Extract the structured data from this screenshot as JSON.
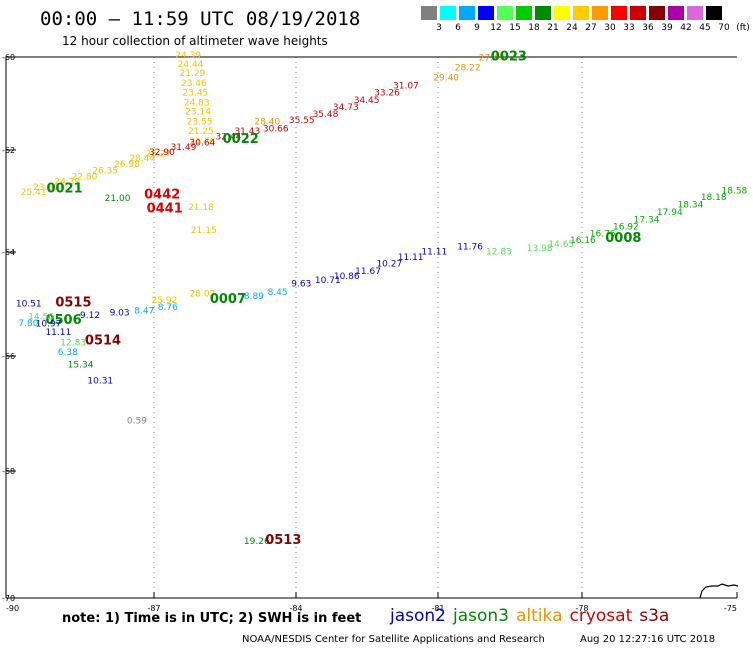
{
  "title": "00:00 – 11:59 UTC 08/19/2018",
  "subtitle": "12 hour collection of altimeter wave heights",
  "legend": {
    "colors": [
      "#808080",
      "#00ffff",
      "#00aaff",
      "#0000ff",
      "#55ff55",
      "#00cc00",
      "#008800",
      "#ffff00",
      "#ffcc00",
      "#ff9900",
      "#ff0000",
      "#cc0000",
      "#880000",
      "#aa00aa",
      "#dd66dd",
      "#000000"
    ],
    "labels": [
      "3",
      "6",
      "9",
      "12",
      "15",
      "18",
      "21",
      "24",
      "27",
      "30",
      "33",
      "36",
      "39",
      "42",
      "45",
      "70",
      "(ft)"
    ]
  },
  "axes": {
    "lat_ticks": [
      "-60",
      "-62",
      "-64",
      "-66",
      "-68",
      "-70"
    ],
    "lon_ticks": [
      "-90",
      "-87",
      "-84",
      "-81",
      "-78",
      "-75"
    ]
  },
  "observations": [
    {
      "text": "24.39",
      "color": "#f2c200",
      "lon": -86.55,
      "lat": -60.02
    },
    {
      "text": "24.44",
      "color": "#f2c200",
      "lon": -86.5,
      "lat": -60.21
    },
    {
      "text": "21.29",
      "color": "#f2c200",
      "lon": -86.46,
      "lat": -60.41
    },
    {
      "text": "23.46",
      "color": "#f2c200",
      "lon": -86.43,
      "lat": -60.62
    },
    {
      "text": "23.45",
      "color": "#f2c200",
      "lon": -86.4,
      "lat": -60.83
    },
    {
      "text": "24.83",
      "color": "#f2c200",
      "lon": -86.37,
      "lat": -61.04
    },
    {
      "text": "23.14",
      "color": "#f2c200",
      "lon": -86.34,
      "lat": -61.24
    },
    {
      "text": "23.55",
      "color": "#f2c200",
      "lon": -86.31,
      "lat": -61.45
    },
    {
      "text": "21.25",
      "color": "#f2c200",
      "lon": -86.28,
      "lat": -61.66
    },
    {
      "text": "21.76",
      "color": "#f2c200",
      "lon": -86.25,
      "lat": -61.87
    },
    {
      "text": "21.18",
      "color": "#f2c200",
      "lon": -86.28,
      "lat": -63.18
    },
    {
      "text": "21.15",
      "color": "#f2c200",
      "lon": -86.22,
      "lat": -63.63
    },
    {
      "text": "25.41",
      "color": "#f2c200",
      "lon": -89.7,
      "lat": -62.88
    },
    {
      "text": "23.60",
      "color": "#f2c200",
      "lon": -89.45,
      "lat": -62.78
    },
    {
      "text": "24.39",
      "color": "#f2c200",
      "lon": -89.02,
      "lat": -62.68
    },
    {
      "text": "22.80",
      "color": "#f2c200",
      "lon": -88.67,
      "lat": -62.58
    },
    {
      "text": "26.35",
      "color": "#f2c200",
      "lon": -88.25,
      "lat": -62.46
    },
    {
      "text": "26.98",
      "color": "#f2c200",
      "lon": -87.81,
      "lat": -62.33
    },
    {
      "text": "28.44",
      "color": "#f2c200",
      "lon": -87.5,
      "lat": -62.22
    },
    {
      "text": "26.27",
      "color": "#f2c200",
      "lon": -87.17,
      "lat": -62.13
    },
    {
      "text": "25.92",
      "color": "#f2c200",
      "lon": -87.05,
      "lat": -64.98
    },
    {
      "text": "28.02",
      "color": "#f2c200",
      "lon": -86.25,
      "lat": -64.86
    },
    {
      "text": "28.22",
      "color": "#f09000",
      "lon": -80.65,
      "lat": -60.29
    },
    {
      "text": "27.43",
      "color": "#f09000",
      "lon": -80.15,
      "lat": -60.08
    },
    {
      "text": "29.40",
      "color": "#f09000",
      "lon": -81.1,
      "lat": -60.5
    },
    {
      "text": "28.40",
      "color": "#f09000",
      "lon": -84.88,
      "lat": -61.45
    },
    {
      "text": "31.07",
      "color": "#cc0000",
      "lon": -81.95,
      "lat": -60.68
    },
    {
      "text": "33.26",
      "color": "#cc0000",
      "lon": -82.35,
      "lat": -60.83
    },
    {
      "text": "34.45",
      "color": "#cc0000",
      "lon": -82.78,
      "lat": -60.99
    },
    {
      "text": "34.73",
      "color": "#cc0000",
      "lon": -83.22,
      "lat": -61.14
    },
    {
      "text": "35.48",
      "color": "#cc0000",
      "lon": -83.65,
      "lat": -61.29
    },
    {
      "text": "35.55",
      "color": "#cc0000",
      "lon": -84.15,
      "lat": -61.42
    },
    {
      "text": "30.66",
      "color": "#cc0000",
      "lon": -84.7,
      "lat": -61.6
    },
    {
      "text": "31.43",
      "color": "#cc0000",
      "lon": -85.3,
      "lat": -61.66
    },
    {
      "text": "32.44",
      "color": "#cc0000",
      "lon": -85.7,
      "lat": -61.77
    },
    {
      "text": "30.64",
      "color": "#cc0000",
      "lon": -86.25,
      "lat": -61.9
    },
    {
      "text": "31.49",
      "color": "#cc0000",
      "lon": -86.65,
      "lat": -62.0
    },
    {
      "text": "32.90",
      "color": "#cc0000",
      "lon": -87.1,
      "lat": -62.1
    },
    {
      "text": "0442",
      "color": "#e00000",
      "lon": -87.2,
      "lat": -62.95,
      "big": true
    },
    {
      "text": "0441",
      "color": "#e00000",
      "lon": -87.15,
      "lat": -63.23,
      "big": true
    },
    {
      "text": "0023",
      "color": "#008800",
      "lon": -79.9,
      "lat": -60.08,
      "big": true
    },
    {
      "text": "0022",
      "color": "#008800",
      "lon": -85.55,
      "lat": -61.85,
      "big": true
    },
    {
      "text": "0021",
      "color": "#008800",
      "lon": -89.18,
      "lat": -62.83,
      "big": true
    },
    {
      "text": "0008",
      "color": "#008800",
      "lon": -77.55,
      "lat": -63.8,
      "big": true
    },
    {
      "text": "0007",
      "color": "#008800",
      "lon": -85.82,
      "lat": -64.98,
      "big": true
    },
    {
      "text": "0506",
      "color": "#008800",
      "lon": -89.2,
      "lat": -65.38,
      "big": true
    },
    {
      "text": "21.00",
      "color": "#008800",
      "lon": -88.0,
      "lat": -63.0
    },
    {
      "text": "15.34",
      "color": "#008800",
      "lon": -88.75,
      "lat": -66.2
    },
    {
      "text": "19.26",
      "color": "#008800",
      "lon": -85.1,
      "lat": -69.15
    },
    {
      "text": "18.58",
      "color": "#00aa00",
      "lon": -75.3,
      "lat": -62.85
    },
    {
      "text": "18.18",
      "color": "#00aa00",
      "lon": -75.7,
      "lat": -62.98
    },
    {
      "text": "18.34",
      "color": "#00aa00",
      "lon": -76.15,
      "lat": -63.13
    },
    {
      "text": "17.94",
      "color": "#00aa00",
      "lon": -76.55,
      "lat": -63.27
    },
    {
      "text": "17.34",
      "color": "#00aa00",
      "lon": -77.0,
      "lat": -63.42
    },
    {
      "text": "16.92",
      "color": "#00aa00",
      "lon": -77.4,
      "lat": -63.56
    },
    {
      "text": "16.76",
      "color": "#00aa00",
      "lon": -77.85,
      "lat": -63.7
    },
    {
      "text": "16.16",
      "color": "#00aa00",
      "lon": -78.25,
      "lat": -63.82
    },
    {
      "text": "14.65",
      "color": "#55dd55",
      "lon": -78.7,
      "lat": -63.9
    },
    {
      "text": "13.98",
      "color": "#55dd55",
      "lon": -79.15,
      "lat": -63.98
    },
    {
      "text": "12.83",
      "color": "#55dd55",
      "lon": -80.0,
      "lat": -64.05
    },
    {
      "text": "12.83",
      "color": "#55dd55",
      "lon": -88.9,
      "lat": -65.8
    },
    {
      "text": "14.56",
      "color": "#55dd55",
      "lon": -89.55,
      "lat": -65.3
    },
    {
      "text": "11.76",
      "color": "#0000cc",
      "lon": -80.6,
      "lat": -63.95
    },
    {
      "text": "11.11",
      "color": "#0000cc",
      "lon": -81.35,
      "lat": -64.05
    },
    {
      "text": "11.11",
      "color": "#0000cc",
      "lon": -81.85,
      "lat": -64.15
    },
    {
      "text": "10.27",
      "color": "#0000cc",
      "lon": -82.3,
      "lat": -64.28
    },
    {
      "text": "11.67",
      "color": "#0000cc",
      "lon": -82.75,
      "lat": -64.42
    },
    {
      "text": "10.86",
      "color": "#0000cc",
      "lon": -83.2,
      "lat": -64.52
    },
    {
      "text": "10.71",
      "color": "#0000cc",
      "lon": -83.6,
      "lat": -64.6
    },
    {
      "text": "9.63",
      "color": "#0000cc",
      "lon": -84.1,
      "lat": -64.66
    },
    {
      "text": "10.51",
      "color": "#0000cc",
      "lon": -89.8,
      "lat": -65.05
    },
    {
      "text": "10.97",
      "color": "#0000cc",
      "lon": -89.4,
      "lat": -65.43
    },
    {
      "text": "9.12",
      "color": "#0000cc",
      "lon": -88.5,
      "lat": -65.27
    },
    {
      "text": "9.03",
      "color": "#0000cc",
      "lon": -87.9,
      "lat": -65.22
    },
    {
      "text": "11.11",
      "color": "#0000cc",
      "lon": -89.2,
      "lat": -65.6
    },
    {
      "text": "10.31",
      "color": "#0000cc",
      "lon": -88.35,
      "lat": -66.48
    },
    {
      "text": "8.45",
      "color": "#00aaee",
      "lon": -84.6,
      "lat": -64.83
    },
    {
      "text": "8.89",
      "color": "#00aaee",
      "lon": -85.1,
      "lat": -64.9
    },
    {
      "text": "8.76",
      "color": "#00aaee",
      "lon": -86.92,
      "lat": -65.12
    },
    {
      "text": "8.47",
      "color": "#00aaee",
      "lon": -87.4,
      "lat": -65.18
    },
    {
      "text": "7.80",
      "color": "#00aaee",
      "lon": -89.75,
      "lat": -65.42
    },
    {
      "text": "6.38",
      "color": "#00aaee",
      "lon": -88.95,
      "lat": -65.98
    },
    {
      "text": "0.59",
      "color": "#808080",
      "lon": -87.55,
      "lat": -67.17
    },
    {
      "text": "0515",
      "color": "#880000",
      "lon": -89.0,
      "lat": -65.05,
      "big": true
    },
    {
      "text": "0514",
      "color": "#880000",
      "lon": -88.4,
      "lat": -65.78,
      "big": true
    },
    {
      "text": "0513",
      "color": "#880000",
      "lon": -84.65,
      "lat": -69.15,
      "big": true
    }
  ],
  "satellites": [
    {
      "name": "jason2",
      "color": "#0000cc"
    },
    {
      "name": "jason3",
      "color": "#008800"
    },
    {
      "name": "altika",
      "color": "#f09000"
    },
    {
      "name": "cryosat",
      "color": "#cc0000"
    },
    {
      "name": "s3a",
      "color": "#880000"
    }
  ],
  "note": "note: 1) Time is in UTC; 2) SWH is in feet",
  "credit": "NOAA/NESDIS Center for Satellite Applications and Research",
  "timestamp": "Aug 20 12:27:16 UTC 2018"
}
